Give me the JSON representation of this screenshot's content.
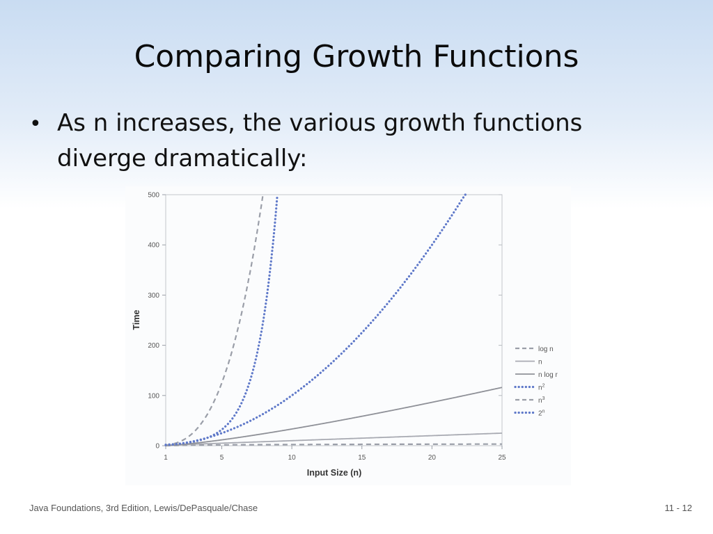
{
  "slide": {
    "title": "Comparing Growth Functions",
    "bullet": "As n increases, the various growth functions diverge dramatically:"
  },
  "footer": {
    "source": "Java Foundations, 3rd Edition, Lewis/DePasquale/Chase",
    "page": "11 - 12"
  },
  "chart_data": {
    "type": "line",
    "title": "",
    "xlabel": "Input Size (n)",
    "ylabel": "Time",
    "xlim": [
      1,
      25
    ],
    "ylim": [
      0,
      500
    ],
    "xticks": [
      1,
      5,
      10,
      15,
      20,
      25
    ],
    "yticks": [
      0,
      100,
      200,
      300,
      400,
      500
    ],
    "grid": false,
    "legend_position": "right",
    "series": [
      {
        "name": "log n",
        "function": "log n",
        "style": "dashed",
        "color": "#9a9ea8",
        "x": [
          1,
          5,
          10,
          15,
          20,
          25
        ],
        "y": [
          0,
          2.3,
          3.3,
          3.9,
          4.3,
          4.6
        ]
      },
      {
        "name": "n",
        "function": "n",
        "style": "solid",
        "color": "#a8aab2",
        "x": [
          1,
          5,
          10,
          15,
          20,
          25
        ],
        "y": [
          1,
          5,
          10,
          15,
          20,
          25
        ]
      },
      {
        "name": "n log r",
        "function": "n log n",
        "style": "solid",
        "color": "#8e9097",
        "x": [
          1,
          5,
          10,
          15,
          20,
          25
        ],
        "y": [
          0,
          11.6,
          33.2,
          58.6,
          86.4,
          116.1
        ]
      },
      {
        "name": "n2",
        "function": "n^2",
        "style": "dotted",
        "color": "#5f79c9",
        "x": [
          1,
          5,
          10,
          15,
          20,
          22.4
        ],
        "y": [
          1,
          25,
          100,
          225,
          400,
          500
        ]
      },
      {
        "name": "n3",
        "function": "n^3",
        "style": "dashed",
        "color": "#9a9ea8",
        "x": [
          1,
          2,
          3,
          4,
          5,
          6,
          7,
          7.94
        ],
        "y": [
          1,
          8,
          27,
          64,
          125,
          216,
          343,
          500
        ]
      },
      {
        "name": "2n",
        "function": "2^n",
        "style": "dotted",
        "color": "#5f79c9",
        "x": [
          1,
          3,
          5,
          6,
          7,
          8,
          8.97
        ],
        "y": [
          2,
          8,
          32,
          64,
          128,
          256,
          500
        ]
      }
    ]
  }
}
